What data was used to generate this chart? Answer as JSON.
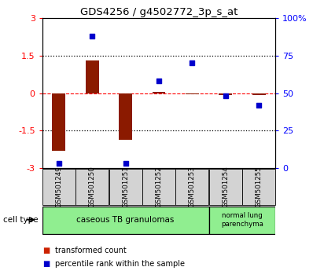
{
  "title": "GDS4256 / g4502772_3p_s_at",
  "samples": [
    "GSM501249",
    "GSM501250",
    "GSM501251",
    "GSM501252",
    "GSM501253",
    "GSM501254",
    "GSM501255"
  ],
  "transformed_count": [
    -2.3,
    1.3,
    -1.85,
    0.05,
    -0.05,
    -0.08,
    -0.08
  ],
  "percentile_rank": [
    3,
    88,
    3,
    58,
    70,
    48,
    42
  ],
  "ylim_left": [
    -3,
    3
  ],
  "ylim_right": [
    0,
    100
  ],
  "yticks_left": [
    -3,
    -1.5,
    0,
    1.5,
    3
  ],
  "yticks_right": [
    0,
    25,
    50,
    75,
    100
  ],
  "ytick_labels_left": [
    "-3",
    "-1.5",
    "0",
    "1.5",
    "3"
  ],
  "ytick_labels_right": [
    "0",
    "25",
    "50",
    "75",
    "100%"
  ],
  "bar_color": "#8B1A00",
  "dot_color": "#0000CC",
  "group1_label": "caseous TB granulomas",
  "group1_range": [
    0,
    4
  ],
  "group2_label": "normal lung\nparenchyma",
  "group2_range": [
    5,
    6
  ],
  "group_color": "#90EE90",
  "cell_type_label": "cell type",
  "legend_items": [
    {
      "color": "#CC2200",
      "label": "transformed count"
    },
    {
      "color": "#0000CC",
      "label": "percentile rank within the sample"
    }
  ],
  "background_color": "#ffffff"
}
